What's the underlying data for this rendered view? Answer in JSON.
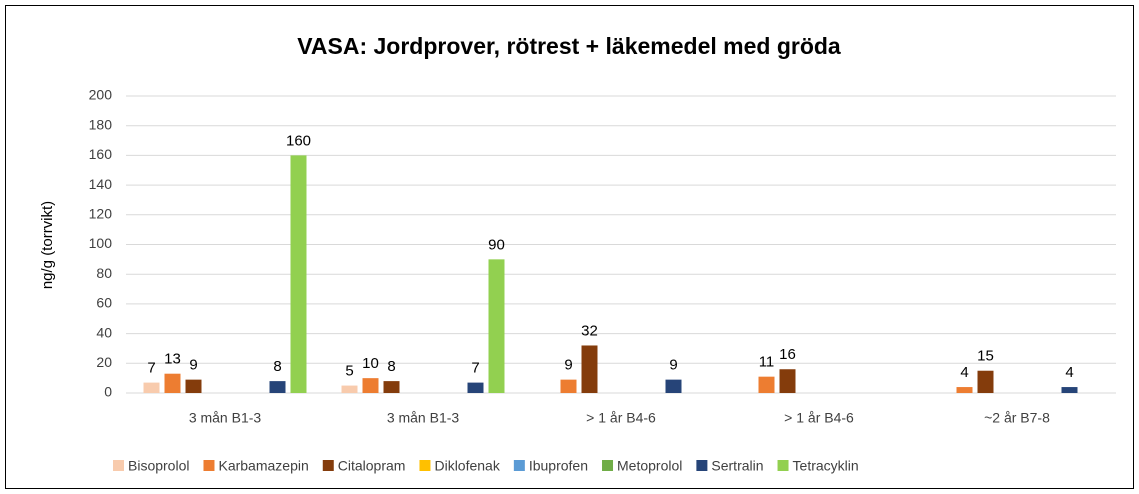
{
  "chart_data": {
    "type": "bar",
    "title": "VASA: Jordprover, rötrest + läkemedel med gröda",
    "y_label": "ng/g (torrvikt)",
    "categories": [
      "3 mån B1-3",
      "3 mån B1-3",
      "> 1 år B4-6",
      "> 1 år B4-6",
      "~2 år B7-8"
    ],
    "series": [
      {
        "name": "Bisoprolol",
        "color": "#f8cbad",
        "values": [
          7,
          5,
          null,
          null,
          null
        ]
      },
      {
        "name": "Karbamazepin",
        "color": "#ed7d31",
        "values": [
          13,
          10,
          9,
          11,
          4
        ]
      },
      {
        "name": "Citalopram",
        "color": "#843c0c",
        "values": [
          9,
          8,
          32,
          16,
          15
        ]
      },
      {
        "name": "Diklofenak",
        "color": "#ffc000",
        "values": [
          null,
          null,
          null,
          null,
          null
        ]
      },
      {
        "name": "Ibuprofen",
        "color": "#5b9bd5",
        "values": [
          null,
          null,
          null,
          null,
          null
        ]
      },
      {
        "name": "Metoprolol",
        "color": "#70ad47",
        "values": [
          null,
          null,
          null,
          null,
          null
        ]
      },
      {
        "name": "Sertralin",
        "color": "#264478",
        "values": [
          8,
          7,
          9,
          null,
          4
        ]
      },
      {
        "name": "Tetracyklin",
        "color": "#92d050",
        "values": [
          160,
          90,
          null,
          null,
          null
        ]
      }
    ],
    "ylim": [
      0,
      200
    ],
    "yticks": [
      0,
      20,
      40,
      60,
      80,
      100,
      120,
      140,
      160,
      180,
      200
    ],
    "grid": true,
    "legend": "bottom"
  }
}
